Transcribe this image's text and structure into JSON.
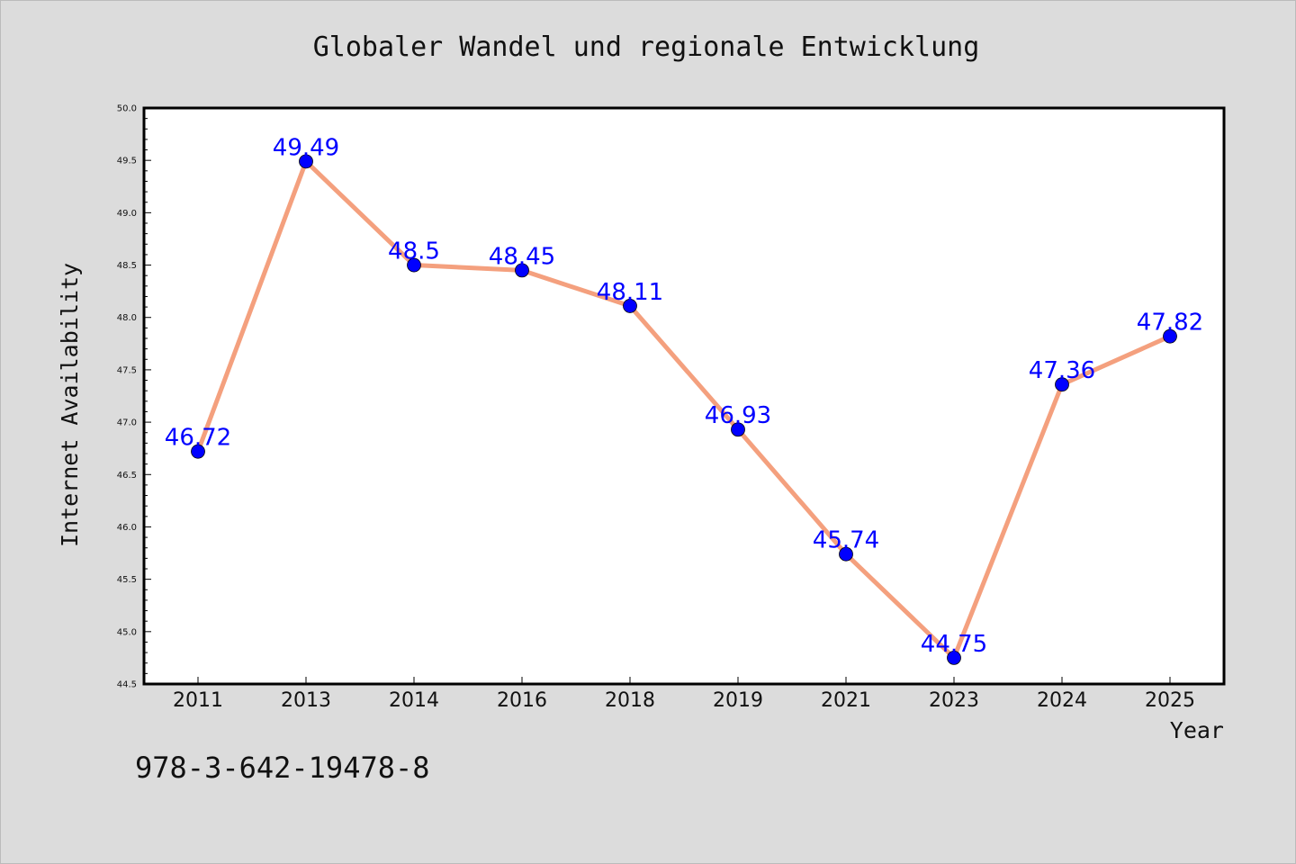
{
  "chart_data": {
    "type": "line",
    "title": "Globaler Wandel und regionale Entwicklung",
    "xlabel": "Year",
    "ylabel": "Internet Availability",
    "categories": [
      "2011",
      "2013",
      "2014",
      "2016",
      "2018",
      "2019",
      "2021",
      "2023",
      "2024",
      "2025"
    ],
    "series": [
      {
        "values": [
          46.72,
          49.49,
          48.5,
          48.45,
          48.11,
          46.93,
          45.74,
          44.75,
          47.36,
          47.82
        ],
        "labels": [
          "46.72",
          "49.49",
          "48.5",
          "48.45",
          "48.11",
          "46.93",
          "45.74",
          "44.75",
          "47.36",
          "47.82"
        ],
        "color": "#f4a07e",
        "marker_color": "#0000ff"
      }
    ],
    "ylim": [
      44.5,
      50.0
    ],
    "yticks": [
      "44.5",
      "45.0",
      "45.5",
      "46.0",
      "46.5",
      "47.0",
      "47.5",
      "48.0",
      "48.5",
      "49.0",
      "49.5",
      "50.0"
    ],
    "grid": false,
    "label_color": "#0000ff"
  },
  "footer_text": "978-3-642-19478-8"
}
